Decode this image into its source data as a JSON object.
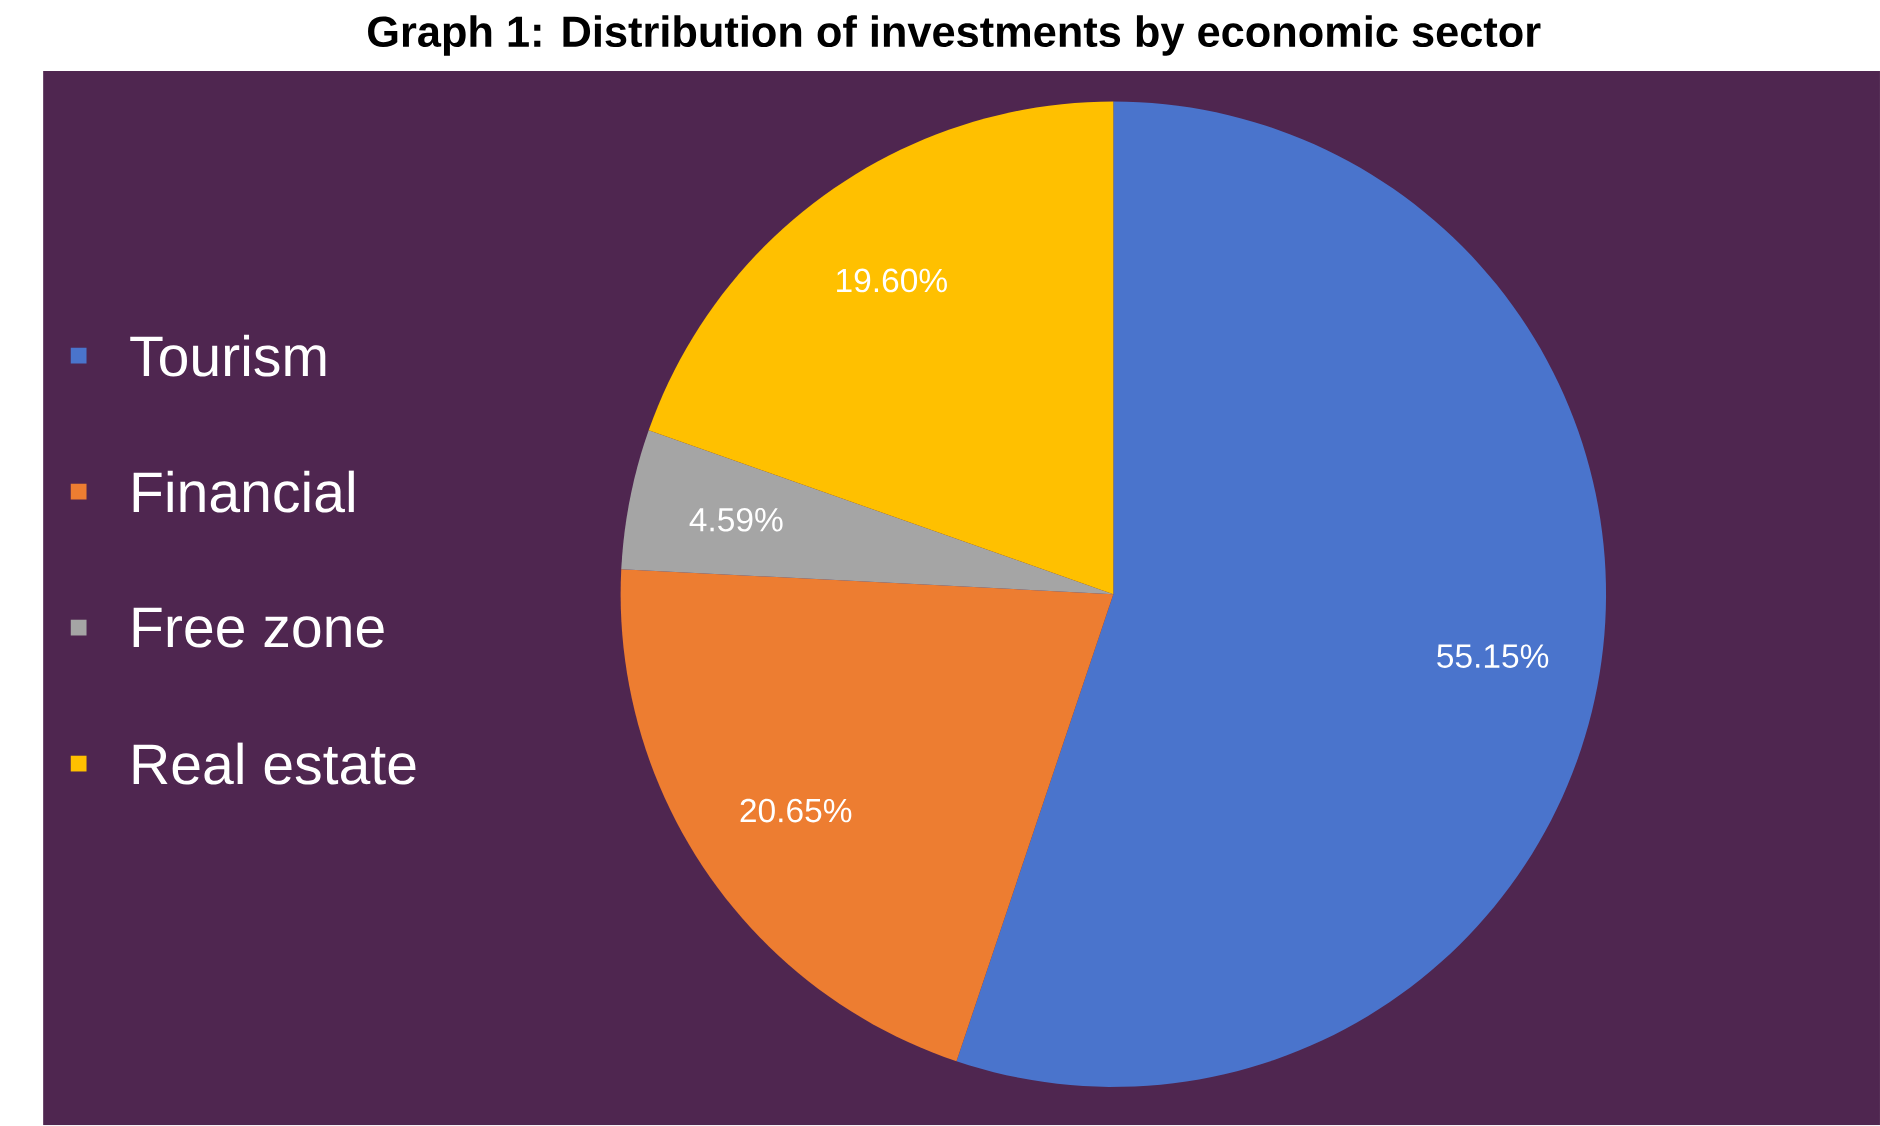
{
  "chart_data": {
    "type": "pie",
    "title": "Graph 1: Distribution of investments by economic sector",
    "categories": [
      "Tourism",
      "Financial",
      "Free zone",
      "Real estate"
    ],
    "values": [
      55.15,
      20.65,
      4.59,
      19.6
    ],
    "value_labels": [
      "55.15%",
      "20.65%",
      "4.59%",
      "19.60%"
    ],
    "colors": [
      "#4a74cc",
      "#ed7d31",
      "#a5a5a5",
      "#ffc000"
    ],
    "legend": "left"
  }
}
